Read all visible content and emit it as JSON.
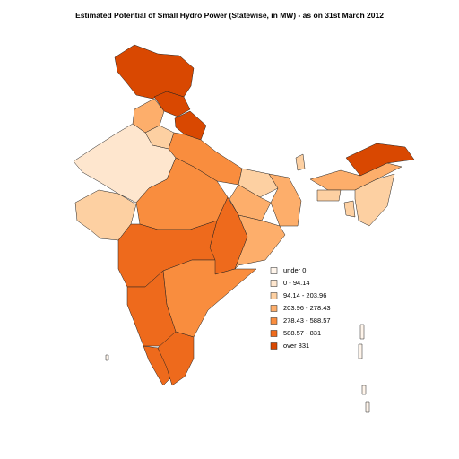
{
  "title": "Estimated Potential of Small Hydro Power (Statewise, in MW) - as on 31st March 2012",
  "legend": [
    {
      "label": "under 0",
      "color": "#fff5eb"
    },
    {
      "label": "0 - 94.14",
      "color": "#fee6ce"
    },
    {
      "label": "94.14 - 203.96",
      "color": "#fdd0a2"
    },
    {
      "label": "203.96 - 278.43",
      "color": "#fdae6b"
    },
    {
      "label": "278.43 - 588.57",
      "color": "#f98d3e"
    },
    {
      "label": "588.57 - 831",
      "color": "#ee6a1c"
    },
    {
      "label": "over 831",
      "color": "#d94801"
    }
  ]
}
